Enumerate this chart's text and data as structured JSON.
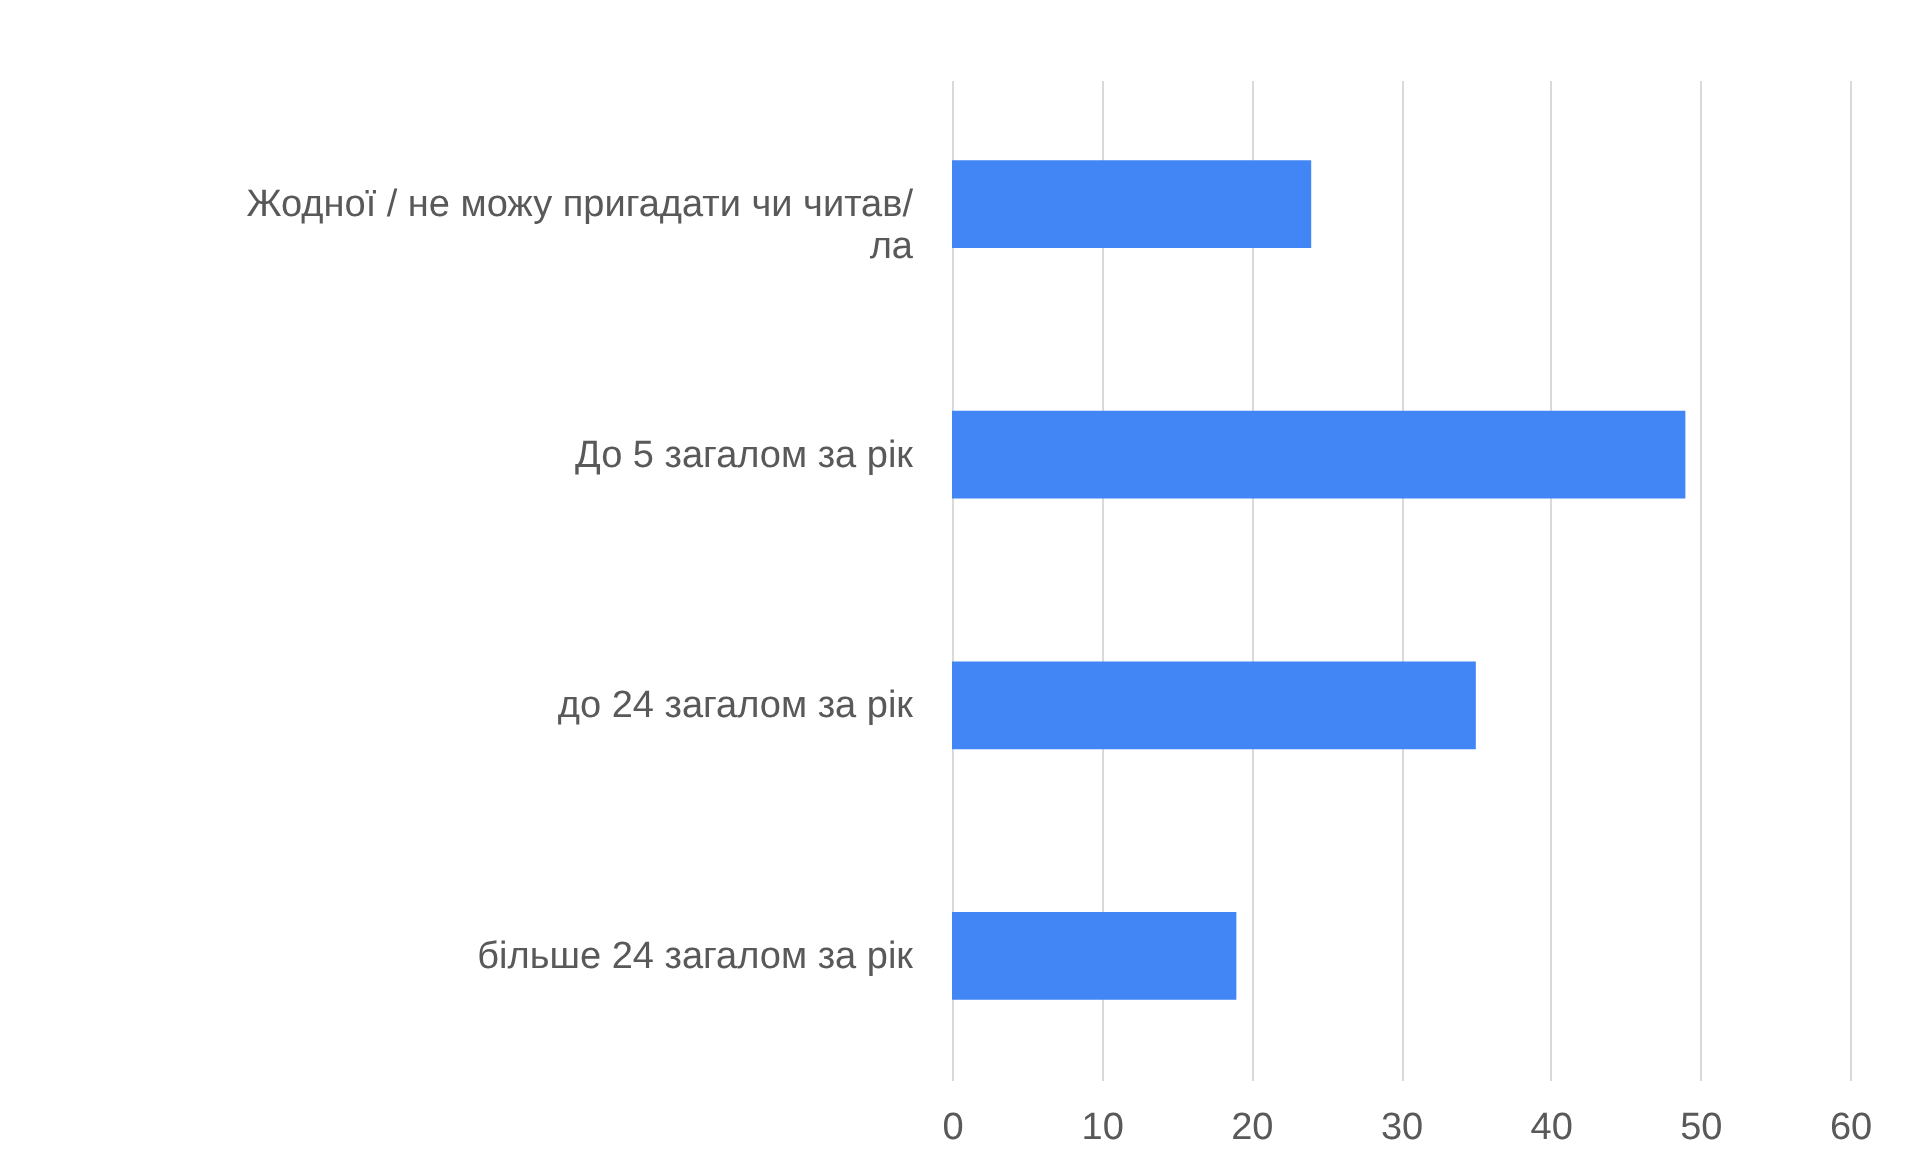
{
  "chart_data": {
    "type": "bar",
    "orientation": "horizontal",
    "categories": [
      "Жодної / не можу пригадати чи читав/ла",
      "До 5 загалом за рік",
      "до 24 загалом за рік",
      "більше 24 загалом за рік"
    ],
    "values": [
      24,
      49,
      35,
      19
    ],
    "color": "#4285f4",
    "xlim": [
      0,
      60
    ],
    "xticks": [
      0,
      10,
      20,
      30,
      40,
      50,
      60
    ],
    "grid": "x"
  }
}
